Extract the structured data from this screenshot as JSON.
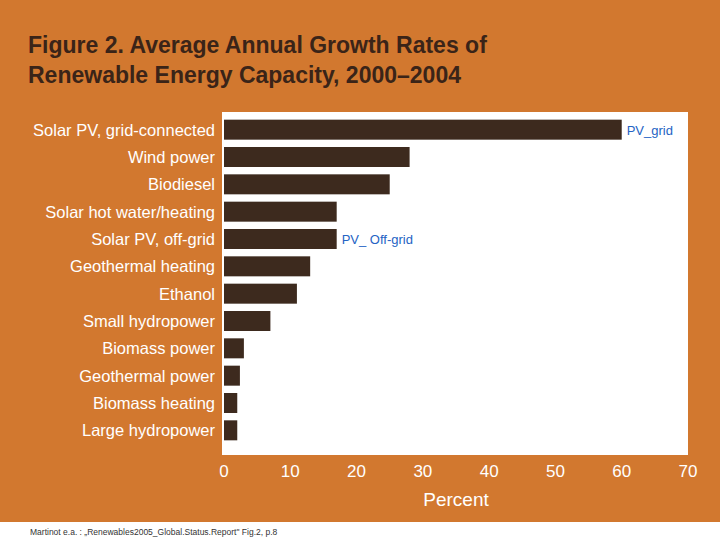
{
  "chart_data": {
    "type": "bar",
    "orientation": "horizontal",
    "title": "Figure 2. Average Annual Growth Rates of Renewable Energy Capacity, 2000–2004",
    "categories": [
      "Solar PV, grid-connected",
      "Wind power",
      "Biodiesel",
      "Solar hot water/heating",
      "Solar PV, off-grid",
      "Geothermal heating",
      "Ethanol",
      "Small hydropower",
      "Biomass power",
      "Geothermal power",
      "Biomass heating",
      "Large hydropower"
    ],
    "values": [
      60,
      28,
      25,
      17,
      17,
      13,
      11,
      7,
      3,
      2.4,
      2,
      2
    ],
    "color": "#3d2a1e",
    "xlim": [
      0,
      70
    ],
    "xticks": [
      0,
      10,
      20,
      30,
      40,
      50,
      60,
      70
    ],
    "x_label": "Percent",
    "grid": false,
    "annotations": [
      {
        "text": "PV_grid",
        "category": "Solar PV, grid-connected"
      },
      {
        "text": "PV_ Off-grid",
        "category": "Solar PV, off-grid"
      }
    ],
    "source": "Martinot e.a. : „Renewables2005_Global.Status.Report\" Fig.2, p.8"
  }
}
